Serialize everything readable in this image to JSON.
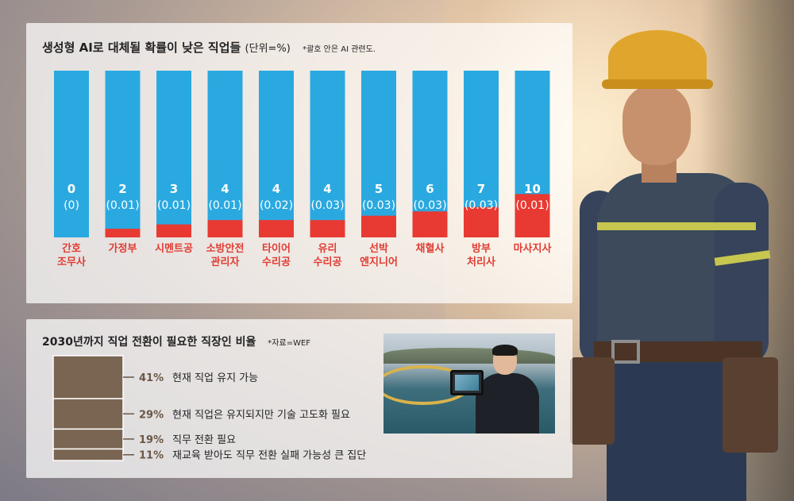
{
  "top_panel": {
    "title": "생성형 AI로 대체될 확률이 낮은 직업들",
    "unit": "(단위=%)",
    "note": "*괄호 안은 AI 관련도."
  },
  "bottom_panel": {
    "title": "2030년까지 직업 전환이 필요한 직장인 비율",
    "note": "*자료=WEF"
  },
  "colors": {
    "bar": "#2aa9e0",
    "bar_fill": "#e83a32",
    "category_text": "#e03c32",
    "stack": "#7a6553"
  },
  "chart_data": [
    {
      "type": "bar",
      "title": "생성형 AI로 대체될 확률이 낮은 직업들",
      "unit": "%",
      "ylim": [
        0,
        100
      ],
      "categories": [
        [
          "간호",
          "조무사"
        ],
        [
          "가정부"
        ],
        [
          "시멘트공"
        ],
        [
          "소방안전",
          "관리자"
        ],
        [
          "타이어",
          "수리공"
        ],
        [
          "유리",
          "수리공"
        ],
        [
          "선박",
          "엔지니어"
        ],
        [
          "채혈사"
        ],
        [
          "방부",
          "처리사"
        ],
        [
          "마사지사"
        ]
      ],
      "values": [
        0,
        2,
        3,
        4,
        4,
        4,
        5,
        6,
        7,
        10
      ],
      "ai_relevance": [
        "0",
        "0.01",
        "0.01",
        "0.01",
        "0.02",
        "0.03",
        "0.03",
        "0.03",
        "0.03",
        "0.01"
      ]
    },
    {
      "type": "bar",
      "subtype": "stacked-single",
      "title": "2030년까지 직업 전환이 필요한 직장인 비율",
      "categories": [
        "현재 직업 유지 가능",
        "현재 직업은 유지되지만 기술 고도화 필요",
        "직무 전환 필요",
        "재교육 받아도 직무 전환 실패 가능성 큰 집단"
      ],
      "values": [
        41,
        29,
        19,
        11
      ],
      "unit": "%"
    }
  ],
  "photo_inset": {
    "icon": "worker-with-tablet-photo"
  },
  "worker_illustration": {
    "icon": "construction-worker-photo"
  }
}
